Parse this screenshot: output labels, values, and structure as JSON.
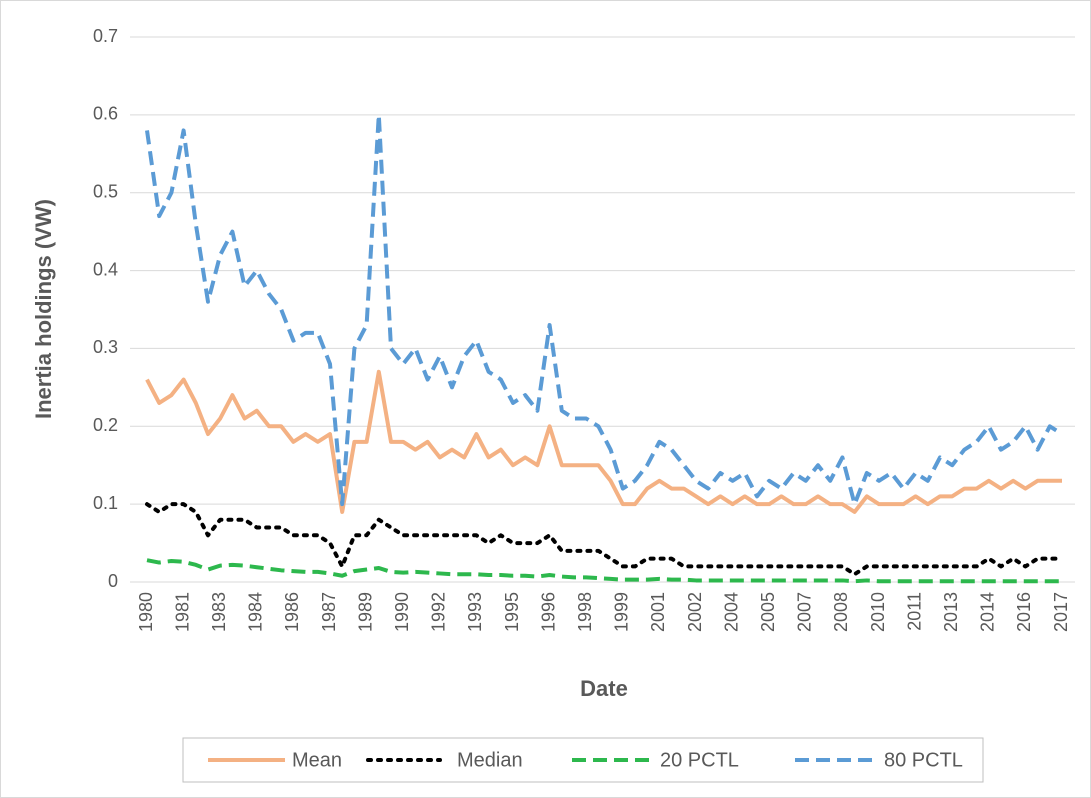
{
  "chart_data": {
    "type": "line",
    "y_label": "Inertia holdings (VW)",
    "x_label": "Date",
    "categories": [
      "1980",
      null,
      null,
      "1981",
      null,
      null,
      "1983",
      null,
      null,
      "1984",
      null,
      null,
      "1986",
      null,
      null,
      "1987",
      null,
      null,
      "1989",
      null,
      null,
      "1990",
      null,
      null,
      "1992",
      null,
      null,
      "1993",
      null,
      null,
      "1995",
      null,
      null,
      "1996",
      null,
      null,
      "1998",
      null,
      null,
      "1999",
      null,
      null,
      "2001",
      null,
      null,
      "2002",
      null,
      null,
      "2004",
      null,
      null,
      "2005",
      null,
      null,
      "2007",
      null,
      null,
      "2008",
      null,
      null,
      "2010",
      null,
      null,
      "2011",
      null,
      null,
      "2013",
      null,
      null,
      "2014",
      null,
      null,
      "2016",
      null,
      null,
      "2017"
    ],
    "series": [
      {
        "name": "Mean",
        "color": "#f4b183",
        "dash": "solid",
        "values": [
          0.26,
          0.23,
          0.24,
          0.26,
          0.23,
          0.19,
          0.21,
          0.24,
          0.21,
          0.22,
          0.2,
          0.2,
          0.18,
          0.19,
          0.18,
          0.19,
          0.09,
          0.18,
          0.18,
          0.27,
          0.18,
          0.18,
          0.17,
          0.18,
          0.16,
          0.17,
          0.16,
          0.19,
          0.16,
          0.17,
          0.15,
          0.16,
          0.15,
          0.2,
          0.15,
          0.15,
          0.15,
          0.15,
          0.13,
          0.1,
          0.1,
          0.12,
          0.13,
          0.12,
          0.12,
          0.11,
          0.1,
          0.11,
          0.1,
          0.11,
          0.1,
          0.1,
          0.11,
          0.1,
          0.1,
          0.11,
          0.1,
          0.1,
          0.09,
          0.11,
          0.1,
          0.1,
          0.1,
          0.11,
          0.1,
          0.11,
          0.11,
          0.12,
          0.12,
          0.13,
          0.12,
          0.13,
          0.12,
          0.13,
          0.13,
          0.13
        ]
      },
      {
        "name": "Median",
        "color": "#000000",
        "dash": "dotted",
        "values": [
          0.1,
          0.09,
          0.1,
          0.1,
          0.09,
          0.06,
          0.08,
          0.08,
          0.08,
          0.07,
          0.07,
          0.07,
          0.06,
          0.06,
          0.06,
          0.05,
          0.02,
          0.06,
          0.06,
          0.08,
          0.07,
          0.06,
          0.06,
          0.06,
          0.06,
          0.06,
          0.06,
          0.06,
          0.05,
          0.06,
          0.05,
          0.05,
          0.05,
          0.06,
          0.04,
          0.04,
          0.04,
          0.04,
          0.03,
          0.02,
          0.02,
          0.03,
          0.03,
          0.03,
          0.02,
          0.02,
          0.02,
          0.02,
          0.02,
          0.02,
          0.02,
          0.02,
          0.02,
          0.02,
          0.02,
          0.02,
          0.02,
          0.02,
          0.01,
          0.02,
          0.02,
          0.02,
          0.02,
          0.02,
          0.02,
          0.02,
          0.02,
          0.02,
          0.02,
          0.03,
          0.02,
          0.03,
          0.02,
          0.03,
          0.03,
          0.03
        ]
      },
      {
        "name": "20 PCTL",
        "color": "#2db84d",
        "dash": "dashed",
        "values": [
          0.028,
          0.025,
          0.027,
          0.026,
          0.022,
          0.016,
          0.021,
          0.022,
          0.021,
          0.019,
          0.017,
          0.015,
          0.014,
          0.013,
          0.013,
          0.011,
          0.008,
          0.014,
          0.016,
          0.018,
          0.013,
          0.012,
          0.013,
          0.012,
          0.011,
          0.01,
          0.01,
          0.01,
          0.009,
          0.009,
          0.008,
          0.008,
          0.007,
          0.009,
          0.007,
          0.006,
          0.006,
          0.005,
          0.004,
          0.003,
          0.003,
          0.003,
          0.004,
          0.003,
          0.003,
          0.002,
          0.002,
          0.002,
          0.002,
          0.002,
          0.002,
          0.002,
          0.002,
          0.002,
          0.002,
          0.002,
          0.002,
          0.002,
          0.001,
          0.002,
          0.001,
          0.001,
          0.001,
          0.001,
          0.001,
          0.001,
          0.001,
          0.001,
          0.001,
          0.001,
          0.001,
          0.001,
          0.001,
          0.001,
          0.001,
          0.001
        ]
      },
      {
        "name": "80 PCTL",
        "color": "#5b9bd5",
        "dash": "dashed",
        "values": [
          0.58,
          0.47,
          0.5,
          0.58,
          0.46,
          0.36,
          0.42,
          0.45,
          0.38,
          0.4,
          0.37,
          0.35,
          0.31,
          0.32,
          0.32,
          0.28,
          0.1,
          0.3,
          0.33,
          0.6,
          0.3,
          0.28,
          0.3,
          0.26,
          0.29,
          0.25,
          0.29,
          0.31,
          0.27,
          0.26,
          0.23,
          0.24,
          0.22,
          0.33,
          0.22,
          0.21,
          0.21,
          0.2,
          0.17,
          0.12,
          0.13,
          0.15,
          0.18,
          0.17,
          0.15,
          0.13,
          0.12,
          0.14,
          0.13,
          0.14,
          0.11,
          0.13,
          0.12,
          0.14,
          0.13,
          0.15,
          0.13,
          0.16,
          0.1,
          0.14,
          0.13,
          0.14,
          0.12,
          0.14,
          0.13,
          0.16,
          0.15,
          0.17,
          0.18,
          0.2,
          0.17,
          0.18,
          0.2,
          0.17,
          0.2,
          0.19
        ]
      }
    ],
    "ylim": [
      0,
      0.7
    ],
    "yticks": [
      0,
      0.1,
      0.2,
      0.3,
      0.4,
      0.5,
      0.6,
      0.7
    ],
    "grid": true,
    "legend": "bottom"
  }
}
